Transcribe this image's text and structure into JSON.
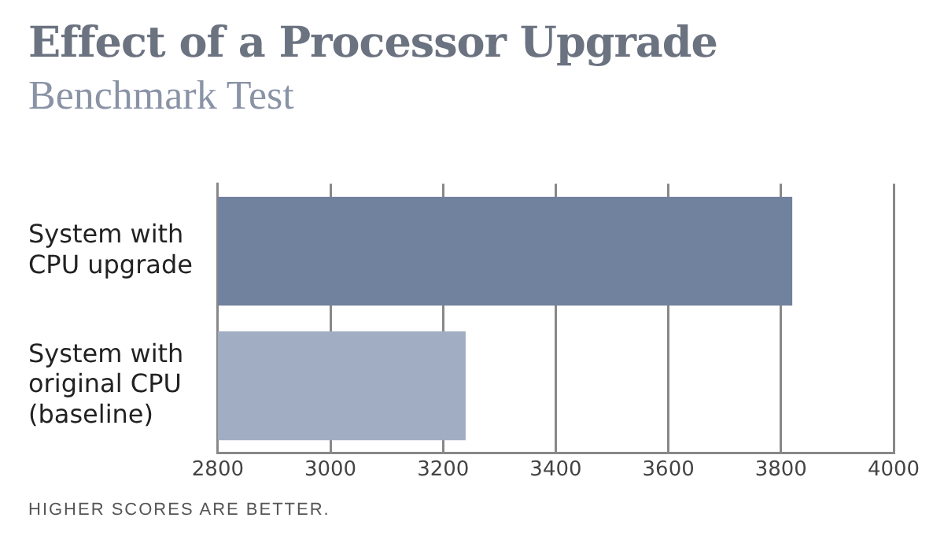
{
  "chart_data": {
    "type": "bar",
    "orientation": "horizontal",
    "title": "Effect of a Processor Upgrade",
    "subtitle": "Benchmark Test",
    "categories": [
      "System with\nCPU upgrade",
      "System with\noriginal CPU\n(baseline)"
    ],
    "values": [
      3820,
      3240
    ],
    "colors": [
      "#71829e",
      "#a0adc2"
    ],
    "xlim": [
      2800,
      4000
    ],
    "xticks": [
      2800,
      3000,
      3200,
      3400,
      3600,
      3800,
      4000
    ],
    "grid": "x",
    "annotations": [
      "HIGHER SCORES ARE BETTER."
    ]
  }
}
